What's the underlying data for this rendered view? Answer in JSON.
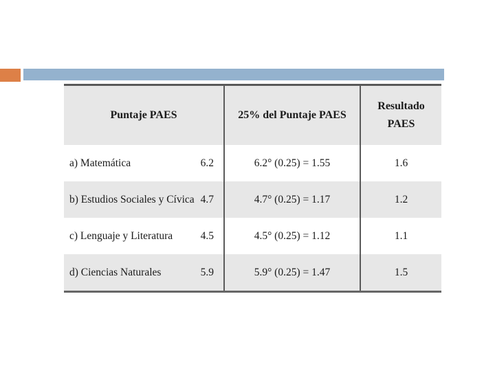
{
  "decor": {
    "orange_accent_color": "#DD8047",
    "blue_bar_color": "#94B2CE"
  },
  "table": {
    "headers": {
      "col1": "Puntaje PAES",
      "col2": "25% del Puntaje PAES",
      "col3": "Resultado PAES"
    },
    "rows": [
      {
        "label": "a) Matemática",
        "score": "6.2",
        "formula": "6.2° (0.25) = 1.55",
        "result": "1.6"
      },
      {
        "label": "b) Estudios Sociales y Cívica",
        "score": "4.7",
        "formula": "4.7° (0.25) = 1.17",
        "result": "1.2"
      },
      {
        "label": "c) Lenguaje y Literatura",
        "score": "4.5",
        "formula": "4.5° (0.25) = 1.12",
        "result": "1.1"
      },
      {
        "label": "d) Ciencias Naturales",
        "score": "5.9",
        "formula": "5.9° (0.25) = 1.47",
        "result": "1.5"
      }
    ],
    "colors": {
      "header_bg": "#e7e7e7",
      "stripe_bg": "#e7e7e7",
      "border_dark": "#5a5a5a"
    }
  }
}
